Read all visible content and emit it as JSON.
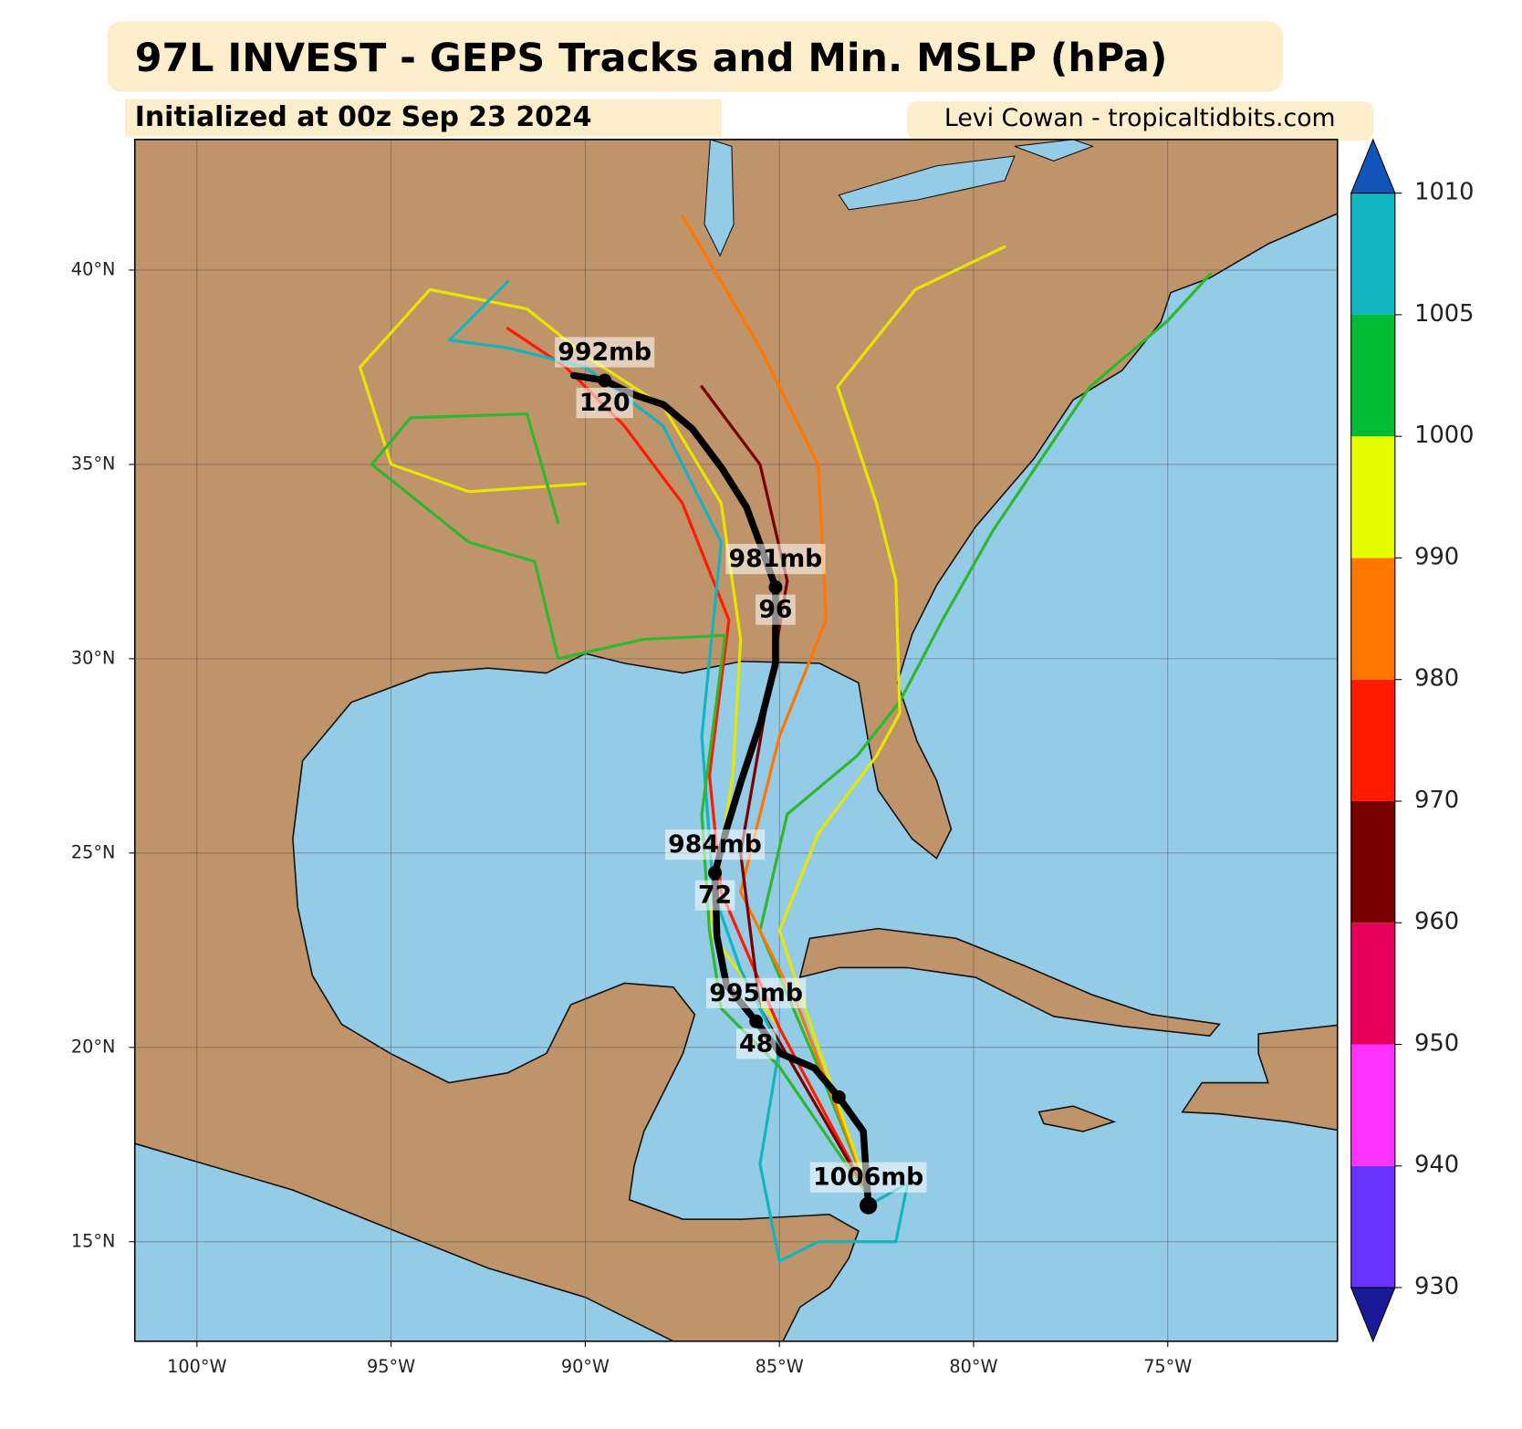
{
  "chart_data": {
    "type": "track_map",
    "title": "97L INVEST - GEPS Tracks and Min. MSLP (hPa)",
    "subtitle": "Initialized at 00z Sep 23 2024",
    "credit": "Levi Cowan - tropicaltidbits.com",
    "xlim": [
      -101.6,
      -70.63
    ],
    "ylim": [
      12.44,
      43.36
    ],
    "xticks": [
      {
        "value": -100,
        "label": "100°W"
      },
      {
        "value": -95,
        "label": "95°W"
      },
      {
        "value": -90,
        "label": "90°W"
      },
      {
        "value": -85,
        "label": "85°W"
      },
      {
        "value": -80,
        "label": "80°W"
      },
      {
        "value": -75,
        "label": "75°W"
      }
    ],
    "yticks": [
      {
        "value": 15,
        "label": "15°N"
      },
      {
        "value": 20,
        "label": "20°N"
      },
      {
        "value": 25,
        "label": "25°N"
      },
      {
        "value": 30,
        "label": "30°N"
      },
      {
        "value": 35,
        "label": "35°N"
      },
      {
        "value": 40,
        "label": "40°N"
      }
    ],
    "grid": true,
    "colorbar": {
      "boundaries": [
        930,
        940,
        950,
        960,
        970,
        980,
        990,
        1000,
        1005,
        1010
      ],
      "colors": [
        "#6633ff",
        "#ff33ff",
        "#e6005c",
        "#7a0000",
        "#ff1a00",
        "#ff7700",
        "#e6ff00",
        "#00bb33",
        "#11b5c0"
      ],
      "under_color": "#1a1a99",
      "over_color": "#1155bb"
    },
    "ensemble_tracks": [
      {
        "color": "#2eb82e",
        "lon": [
          -82.6,
          -84,
          -85.5,
          -84.8,
          -83,
          -81.9,
          -80.8,
          -79.5,
          -77,
          -75,
          -73.9
        ],
        "lat": [
          16,
          19.5,
          23,
          26,
          27.5,
          28.9,
          31,
          33.3,
          37,
          38.7,
          39.9
        ]
      },
      {
        "color": "#e6e600",
        "lon": [
          -82.6,
          -85,
          -86.8,
          -86.2,
          -86,
          -86.5,
          -88,
          -90,
          -91.5,
          -94,
          -95.8,
          -95,
          -93,
          -90
        ],
        "lat": [
          16,
          20.5,
          23,
          27,
          30.5,
          34,
          36.5,
          37.8,
          39,
          39.5,
          37.5,
          35,
          34.3,
          34.5
        ]
      },
      {
        "color": "#ff7700",
        "lon": [
          -82.6,
          -84.5,
          -86,
          -85,
          -83.8,
          -84,
          -85.5,
          -87.5
        ],
        "lat": [
          16,
          21,
          24,
          28,
          31,
          35,
          38,
          41.4
        ]
      },
      {
        "color": "#ff1a00",
        "lon": [
          -82.6,
          -85,
          -86.5,
          -86.8,
          -86.3,
          -87.5,
          -89,
          -90.5,
          -92
        ],
        "lat": [
          16,
          20.5,
          24,
          27,
          31,
          34,
          36,
          37.5,
          38.5
        ]
      },
      {
        "color": "#7a0000",
        "lon": [
          -82.6,
          -85.5,
          -86,
          -85.3,
          -84.8,
          -85.5,
          -87
        ],
        "lat": [
          16,
          21,
          25,
          29,
          32,
          35,
          37
        ]
      },
      {
        "color": "#11b5c0",
        "lon": [
          -82.6,
          -81.7,
          -82,
          -84,
          -85,
          -85.5,
          -85,
          -86,
          -86.7,
          -87,
          -86.5,
          -88,
          -90,
          -92,
          -93.5,
          -92
        ],
        "lat": [
          16,
          16.5,
          15,
          15,
          14.5,
          17,
          20,
          22,
          24,
          28,
          33,
          36,
          37.5,
          38,
          38.2,
          39.7
        ]
      },
      {
        "color": "#2eb82e",
        "lon": [
          -82.6,
          -85,
          -86.5,
          -86.8,
          -87,
          -86.4,
          -88.5,
          -90.7,
          -91.3,
          -93,
          -95.5,
          -94.5,
          -91.5,
          -90.7
        ],
        "lat": [
          16,
          19.5,
          21,
          23,
          26,
          30.6,
          30.5,
          30,
          32.5,
          33,
          35,
          36.2,
          36.3,
          33.5
        ]
      },
      {
        "color": "#e6e600",
        "lon": [
          -82.6,
          -84,
          -85,
          -84,
          -82.5,
          -81.9,
          -82,
          -82.5,
          -83.5,
          -81.5,
          -79.2
        ],
        "lat": [
          16,
          20,
          23,
          25.5,
          27.5,
          28.6,
          32,
          34,
          37,
          39.5,
          40.6
        ]
      }
    ],
    "mean_track": {
      "color": "#000000",
      "lon": [
        -82.71,
        -82.84,
        -83.47,
        -84.1,
        -84.97,
        -85.6,
        -86.36,
        -86.61,
        -86.66,
        -86.36,
        -85.98,
        -85.48,
        -85.1,
        -85.1,
        -85.48,
        -85.85,
        -86.48,
        -87.24,
        -87.99,
        -88.74,
        -89.5,
        -90.3
      ],
      "lat": [
        15.93,
        17.84,
        18.72,
        19.47,
        19.84,
        20.67,
        21.6,
        22.86,
        24.49,
        25.62,
        26.87,
        28.38,
        29.88,
        31.84,
        32.9,
        33.9,
        34.9,
        35.91,
        36.54,
        36.79,
        37.16,
        37.29
      ]
    },
    "mean_points": [
      {
        "lon": -82.71,
        "lat": 15.93,
        "label": "1006mb"
      },
      {
        "lon": -83.47,
        "lat": 18.72
      },
      {
        "lon": -85.6,
        "lat": 20.67,
        "label": "995mb",
        "hour": 48
      },
      {
        "lon": -86.66,
        "lat": 24.49,
        "label": "984mb",
        "hour": 72
      },
      {
        "lon": -85.1,
        "lat": 31.84,
        "label": "981mb",
        "hour": 96
      },
      {
        "lon": -89.5,
        "lat": 37.16,
        "label": "992mb",
        "hour": 120
      }
    ]
  }
}
